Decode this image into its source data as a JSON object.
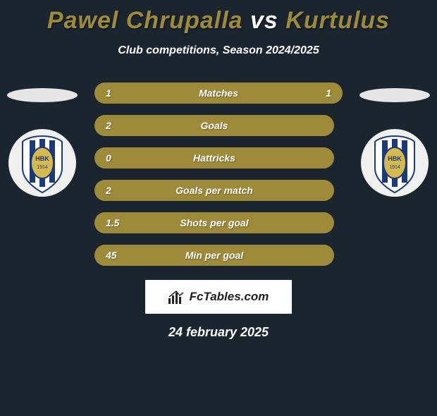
{
  "header": {
    "player1": "Pawel Chrupalla",
    "vs": "vs",
    "player2": "Kurtulus",
    "title_color": "#9e8b3a",
    "vs_color": "#ffffff"
  },
  "subtitle": "Club competitions, Season 2024/2025",
  "stats": {
    "bar_color_full": "#9e8b3a",
    "bar_text_color": "#ffffff",
    "rows": [
      {
        "left": "1",
        "label": "Matches",
        "right": "1",
        "full": true
      },
      {
        "left": "2",
        "label": "Goals",
        "right": "",
        "full": false
      },
      {
        "left": "0",
        "label": "Hattricks",
        "right": "",
        "full": false
      },
      {
        "left": "2",
        "label": "Goals per match",
        "right": "",
        "full": false
      },
      {
        "left": "1.5",
        "label": "Shots per goal",
        "right": "",
        "full": false
      },
      {
        "left": "45",
        "label": "Min per goal",
        "right": "",
        "full": false
      }
    ]
  },
  "clubs": {
    "left_initials": "HBK",
    "left_year": "1914",
    "right_initials": "HBK",
    "right_year": "1914",
    "shield_blue": "#1b3a7a",
    "shield_yellow": "#d6b94f",
    "shield_bg": "#f0f0ee"
  },
  "watermark": {
    "text": "FcTables.com"
  },
  "date": "24 february 2025",
  "colors": {
    "page_bg": "#1a2530"
  }
}
